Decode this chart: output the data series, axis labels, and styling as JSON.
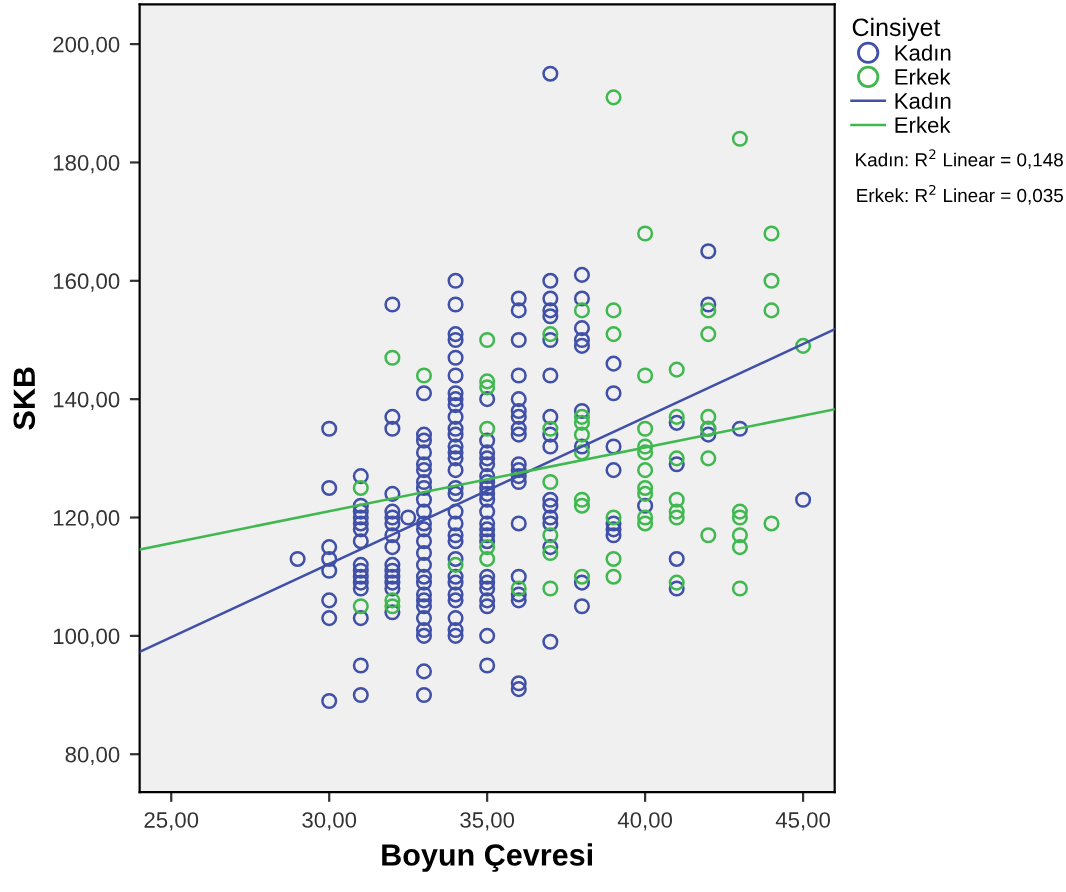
{
  "chart_data": {
    "type": "scatter",
    "xlabel": "Boyun Çevresi",
    "ylabel": "SKB",
    "legend_title": "Cinsiyet",
    "xlim": [
      24,
      46
    ],
    "xticks": [
      {
        "value": 25,
        "label": "25,00"
      },
      {
        "value": 30,
        "label": "30,00"
      },
      {
        "value": 35,
        "label": "35,00"
      },
      {
        "value": 40,
        "label": "40,00"
      },
      {
        "value": 45,
        "label": "45,00"
      }
    ],
    "ylim": [
      73.6,
      206.7
    ],
    "yticks": [
      {
        "value": 80,
        "label": "80,00"
      },
      {
        "value": 100,
        "label": "100,00"
      },
      {
        "value": 120,
        "label": "120,00"
      },
      {
        "value": 140,
        "label": "140,00"
      },
      {
        "value": 160,
        "label": "160,00"
      },
      {
        "value": 180,
        "label": "180,00"
      },
      {
        "value": 200,
        "label": "200,00"
      }
    ],
    "grid": false,
    "legend": "right",
    "marker": "circle",
    "annotations": [
      "Kadın: R$^{2}$ Linear = 0,148",
      "Erkek: R$^{2}$ Linear = 0,035"
    ],
    "series": [
      {
        "name": "Kadın",
        "color": "#4050a8",
        "x": [
          29,
          30,
          30,
          30,
          30,
          30,
          30,
          30,
          30,
          31,
          31,
          31,
          31,
          31,
          31,
          31,
          31,
          31,
          31,
          31,
          31,
          31,
          31,
          31,
          32,
          32,
          32,
          32,
          32,
          32,
          32,
          32,
          32,
          32,
          32,
          32,
          32,
          32,
          32,
          32.5,
          33,
          33,
          33,
          33,
          33,
          33,
          33,
          33,
          33,
          33,
          33,
          33,
          33,
          33,
          33,
          33,
          33,
          33,
          33,
          33,
          33,
          33,
          33,
          33,
          33,
          34,
          34,
          34,
          34,
          34,
          34,
          34,
          34,
          34,
          34,
          34,
          34,
          34,
          34,
          34,
          34,
          34,
          34,
          34,
          34,
          34,
          34,
          34,
          34,
          34,
          34,
          34,
          34,
          34,
          34,
          35,
          35,
          35,
          35,
          35,
          35,
          35,
          35,
          35,
          35,
          35,
          35,
          35,
          35,
          35,
          35,
          35,
          35,
          35,
          35,
          35,
          35,
          36,
          36,
          36,
          36,
          36,
          36,
          36,
          36,
          36,
          36,
          36,
          36,
          36,
          36,
          36,
          36,
          36,
          36,
          36,
          37,
          37,
          37,
          37,
          37,
          37,
          37,
          37,
          37,
          37,
          37,
          37,
          37,
          37,
          37,
          37,
          38,
          38,
          38,
          38,
          38,
          38,
          38,
          38,
          38,
          39,
          39,
          39,
          39,
          39,
          39,
          39,
          40,
          41,
          41,
          41,
          41,
          42,
          42,
          42,
          42,
          43,
          45
        ],
        "values": [
          113,
          135,
          125,
          115,
          113,
          111,
          106,
          103,
          89,
          127,
          122,
          121,
          120,
          119,
          118,
          116,
          112,
          111,
          110,
          109,
          108,
          103,
          95,
          90,
          156,
          137,
          135,
          124,
          121,
          120,
          119,
          117,
          115,
          112,
          111,
          110,
          109,
          108,
          104,
          120,
          141,
          134,
          133,
          131,
          129,
          128,
          126,
          125,
          123,
          121,
          119,
          118,
          116,
          114,
          112,
          110,
          109,
          107,
          106,
          105,
          103,
          101,
          100,
          94,
          90,
          160,
          156,
          151,
          150,
          147,
          144,
          141,
          140,
          139,
          137,
          135,
          134,
          132,
          131,
          130,
          128,
          125,
          124,
          121,
          119,
          117,
          116,
          113,
          110,
          109,
          107,
          106,
          103,
          101,
          100,
          140,
          133,
          131,
          130,
          129,
          127,
          126,
          125,
          124,
          123,
          121,
          119,
          118,
          117,
          116,
          110,
          109,
          108,
          106,
          105,
          100,
          95,
          157,
          155,
          150,
          144,
          140,
          138,
          137,
          135,
          134,
          129,
          128,
          127,
          126,
          119,
          110,
          107,
          106,
          92,
          91,
          195,
          160,
          157,
          155,
          154,
          150,
          144,
          137,
          134,
          132,
          123,
          122,
          120,
          119,
          115,
          99,
          161,
          157,
          152,
          150,
          149,
          138,
          132,
          109,
          105,
          146,
          141,
          132,
          128,
          119,
          118,
          117,
          122,
          136,
          129,
          113,
          108,
          165,
          156,
          135,
          134,
          135,
          123
        ]
      },
      {
        "name": "Erkek",
        "color": "#40b850",
        "x": [
          31,
          31,
          32,
          32,
          32,
          33,
          34,
          35,
          35,
          35,
          35,
          35,
          35,
          36,
          37,
          37,
          37,
          37,
          37,
          37,
          38,
          38,
          38,
          38,
          38,
          38,
          38,
          38,
          39,
          39,
          39,
          39,
          39,
          39,
          40,
          40,
          40,
          40,
          40,
          40,
          40,
          40,
          40,
          40,
          41,
          41,
          41,
          41,
          41,
          41,
          41,
          42,
          42,
          42,
          42,
          42,
          42,
          43,
          43,
          43,
          43,
          43,
          43,
          44,
          44,
          44,
          44,
          45
        ],
        "values": [
          125,
          105,
          147,
          106,
          105,
          144,
          112,
          150,
          143,
          142,
          135,
          115,
          113,
          108,
          151,
          135,
          126,
          117,
          114,
          108,
          155,
          137,
          136,
          134,
          131,
          123,
          122,
          110,
          191,
          155,
          151,
          120,
          113,
          110,
          168,
          144,
          135,
          132,
          131,
          128,
          125,
          124,
          120,
          119,
          145,
          137,
          130,
          123,
          121,
          120,
          109,
          155,
          151,
          137,
          135,
          130,
          117,
          184,
          121,
          120,
          117,
          115,
          108,
          168,
          160,
          155,
          119,
          149
        ]
      },
      {
        "name": "Kadın",
        "type": "line",
        "marker": "none",
        "color": "#4050a8",
        "x": [
          24,
          46
        ],
        "values": [
          97.3,
          151.8
        ]
      },
      {
        "name": "Erkek",
        "type": "line",
        "marker": "none",
        "color": "#40b850",
        "x": [
          24,
          46
        ],
        "values": [
          114.6,
          138.3
        ]
      }
    ]
  }
}
